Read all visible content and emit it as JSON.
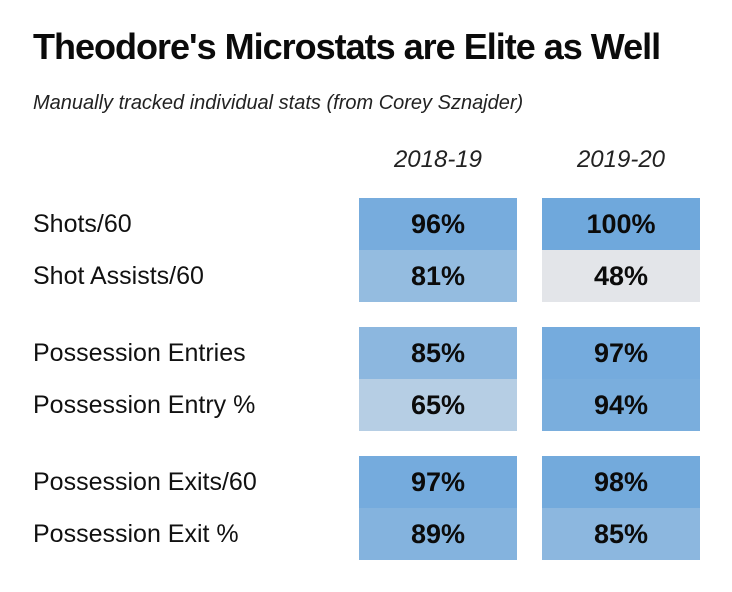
{
  "chart_data": {
    "type": "table",
    "title": "Theodore's Microstats are Elite as Well",
    "subtitle": "Manually tracked individual stats (from Corey Sznajder)",
    "columns": [
      "2018-19",
      "2019-20"
    ],
    "rows": [
      {
        "label": "Shots/60",
        "values": [
          96,
          100
        ]
      },
      {
        "label": "Shot Assists/60",
        "values": [
          81,
          48
        ]
      },
      {
        "label": "Possession Entries",
        "values": [
          85,
          97
        ]
      },
      {
        "label": "Possession Entry %",
        "values": [
          65,
          94
        ]
      },
      {
        "label": "Possession Exits/60",
        "values": [
          97,
          98
        ]
      },
      {
        "label": "Possession Exit %",
        "values": [
          89,
          85
        ]
      }
    ],
    "value_suffix": "%",
    "color_scale": {
      "low": "#efecea",
      "high": "#6fa8dc"
    }
  }
}
